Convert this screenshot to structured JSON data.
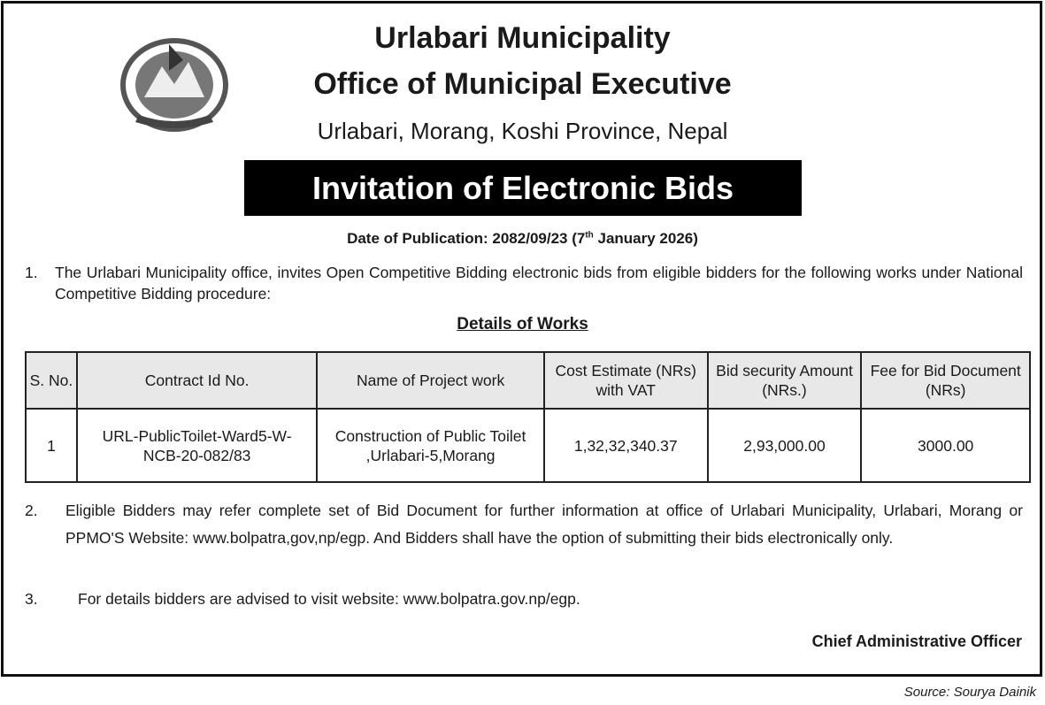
{
  "header": {
    "title": "Urlabari Municipality",
    "subtitle": "Office of Municipal Executive",
    "address": "Urlabari, Morang, Koshi Province, Nepal",
    "banner": "Invitation of Electronic Bids",
    "date_prefix": "Date of Publication: 2082/09/23 (7",
    "date_sup": "th",
    "date_suffix": " January 2026)",
    "logo": "nepal-government-emblem"
  },
  "paragraphs": [
    {
      "num": "1.",
      "text": "The Urlabari Municipality office, invites Open Competitive Bidding electronic bids from eligible bidders for the following works under National Competitive Bidding procedure:"
    },
    {
      "num": "2.",
      "text": "Eligible Bidders may refer complete set of Bid Document for further information at office of Urlabari Municipality, Urlabari, Morang or PPMO'S Website: www.bolpatra,gov,np/egp. And Bidders shall have the option of submitting their bids electronically only."
    },
    {
      "num": "3.",
      "text": "For details bidders are advised to visit website: www.bolpatra.gov.np/egp."
    }
  ],
  "table": {
    "title": "Details of Works",
    "headers": [
      "S. No.",
      "Contract Id  No.",
      "Name of Project work",
      "Cost Estimate (NRs) with VAT",
      "Bid security Amount (NRs.)",
      "Fee for Bid Document (NRs)"
    ],
    "rows": [
      [
        "1",
        "URL-PublicToilet-Ward5-W-NCB-20-082/83",
        "Construction of Public Toilet ,Urlabari-5,Morang",
        "1,32,32,340.37",
        "2,93,000.00",
        "3000.00"
      ]
    ]
  },
  "signature": "Chief Administrative Officer",
  "source": "Source: Sourya Dainik"
}
